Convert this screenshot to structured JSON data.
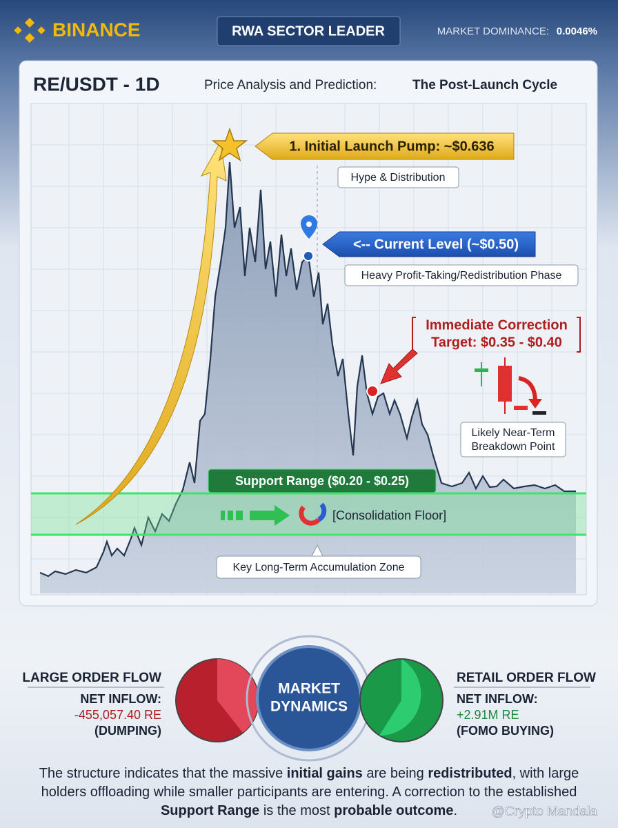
{
  "header": {
    "brand": "BINANCE",
    "badge": "RWA SECTOR LEADER",
    "dominance_label": "MARKET DOMINANCE:",
    "dominance_value": "0.0046%"
  },
  "chart_panel": {
    "pair": "RE/USDT - 1D",
    "subtitle_prefix": "Price Analysis and Prediction:",
    "subtitle_emphasis": "The Post-Launch Cycle"
  },
  "annotations": {
    "launch": {
      "label": "1. Initial Launch Pump: ~$0.636",
      "note": "Hype & Distribution"
    },
    "current": {
      "label": "<-- Current Level (~$0.50)",
      "note": "Heavy Profit-Taking/Redistribution Phase"
    },
    "correction": [
      "Immediate Correction",
      "Target: $0.35 - $0.40"
    ],
    "breakdown": [
      "Likely Near-Term",
      "Breakdown Point"
    ],
    "support": {
      "label": "Support Range ($0.20 - $0.25)",
      "floor": "[Consolidation Floor]",
      "zone": "Key Long-Term Accumulation Zone"
    }
  },
  "flows": {
    "large": {
      "title": "LARGE ORDER FLOW",
      "label": "NET INFLOW:",
      "value": "-455,057.40 RE",
      "status": "(DUMPING)"
    },
    "center": [
      "MARKET",
      "DYNAMICS"
    ],
    "retail": {
      "title": "RETAIL ORDER FLOW",
      "label": "NET INFLOW:",
      "value": "+2.91M RE",
      "status": "(FOMO BUYING)"
    }
  },
  "summary": [
    "The structure indicates that the massive ",
    "initial gains",
    " are being ",
    "redistributed",
    ", with large holders offloading while smaller participants are entering. A correction to the established ",
    "Support Range",
    " is the most ",
    "probable outcome",
    "."
  ],
  "watermark": "@Crypto Mandala"
}
